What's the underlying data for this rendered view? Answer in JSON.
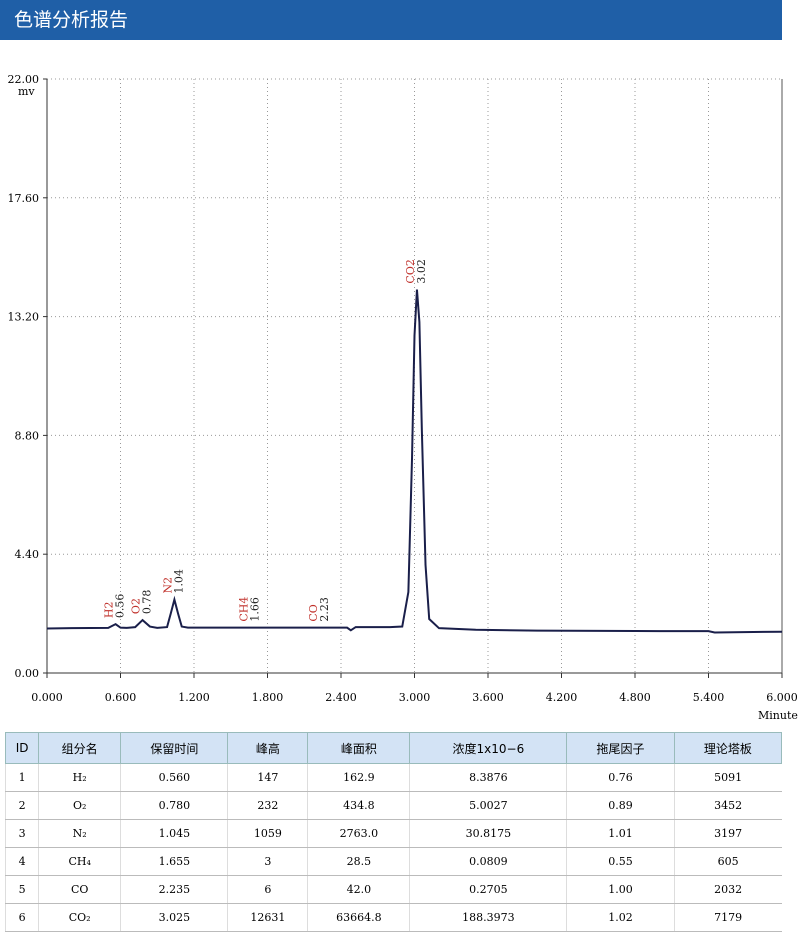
{
  "header": {
    "title": "色谱分析报告"
  },
  "chart_data": {
    "type": "line",
    "y_unit": "mv",
    "x_label": "Minute",
    "x": [
      0,
      0.2,
      0.5,
      0.53,
      0.56,
      0.6,
      0.65,
      0.72,
      0.78,
      0.84,
      0.9,
      0.98,
      1.01,
      1.04,
      1.07,
      1.1,
      1.15,
      1.5,
      2.0,
      2.45,
      2.48,
      2.52,
      2.8,
      2.9,
      2.95,
      2.98,
      3.0,
      3.02,
      3.04,
      3.06,
      3.09,
      3.12,
      3.2,
      3.5,
      4.0,
      5.0,
      5.4,
      5.45,
      6.0
    ],
    "series": [
      {
        "color": "#1a1f4a",
        "values": [
          1.65,
          1.66,
          1.67,
          1.74,
          1.81,
          1.68,
          1.67,
          1.7,
          1.96,
          1.72,
          1.67,
          1.7,
          2.2,
          2.72,
          2.2,
          1.72,
          1.68,
          1.68,
          1.68,
          1.68,
          1.58,
          1.7,
          1.7,
          1.72,
          3.0,
          8.0,
          12.5,
          14.2,
          13.0,
          9.0,
          4.0,
          2.0,
          1.66,
          1.6,
          1.57,
          1.55,
          1.55,
          1.5,
          1.53
        ]
      }
    ],
    "xlim": [
      0,
      6
    ],
    "xticks": [
      {
        "value": 0,
        "label": "0.000"
      },
      {
        "value": 0.6,
        "label": "0.600"
      },
      {
        "value": 1.2,
        "label": "1.200"
      },
      {
        "value": 1.8,
        "label": "1.800"
      },
      {
        "value": 2.4,
        "label": "2.400"
      },
      {
        "value": 3.0,
        "label": "3.000"
      },
      {
        "value": 3.6,
        "label": "3.600"
      },
      {
        "value": 4.2,
        "label": "4.200"
      },
      {
        "value": 4.8,
        "label": "4.800"
      },
      {
        "value": 5.4,
        "label": "5.400"
      },
      {
        "value": 6.0,
        "label": "6.000"
      }
    ],
    "ylim": [
      0,
      22
    ],
    "yticks": [
      {
        "value": 0,
        "label": "0.00"
      },
      {
        "value": 4.4,
        "label": "4.40"
      },
      {
        "value": 8.8,
        "label": "8.80"
      },
      {
        "value": 13.2,
        "label": "13.20"
      },
      {
        "value": 17.6,
        "label": "17.60"
      },
      {
        "value": 22,
        "label": "22.00"
      }
    ],
    "grid": true,
    "peaks": [
      {
        "name": "H2",
        "time": 0.56,
        "time_label": "0.56",
        "height": 1.81
      },
      {
        "name": "O2",
        "time": 0.78,
        "time_label": "0.78",
        "height": 1.96
      },
      {
        "name": "N2",
        "time": 1.04,
        "time_label": "1.04",
        "height": 2.72
      },
      {
        "name": "CH4",
        "time": 1.66,
        "time_label": "1.66",
        "height": 1.68
      },
      {
        "name": "CO",
        "time": 2.23,
        "time_label": "2.23",
        "height": 1.68
      },
      {
        "name": "CO2",
        "time": 3.02,
        "time_label": "3.02",
        "height": 14.2
      }
    ]
  },
  "table": {
    "header": [
      "ID",
      "组分名",
      "保留时间",
      "峰高",
      "峰面积",
      "浓度1x10−6",
      "拖尾因子",
      "理论塔板"
    ],
    "rows": [
      [
        "1",
        "H₂",
        "0.560",
        "147",
        "162.9",
        "8.3876",
        "0.76",
        "5091"
      ],
      [
        "2",
        "O₂",
        "0.780",
        "232",
        "434.8",
        "5.0027",
        "0.89",
        "3452"
      ],
      [
        "3",
        "N₂",
        "1.045",
        "1059",
        "2763.0",
        "30.8175",
        "1.01",
        "3197"
      ],
      [
        "4",
        "CH₄",
        "1.655",
        "3",
        "28.5",
        "0.0809",
        "0.55",
        "605"
      ],
      [
        "5",
        "CO",
        "2.235",
        "6",
        "42.0",
        "0.2705",
        "1.00",
        "2032"
      ],
      [
        "6",
        "CO₂",
        "3.025",
        "12631",
        "63664.8",
        "188.3973",
        "1.02",
        "7179"
      ]
    ]
  }
}
